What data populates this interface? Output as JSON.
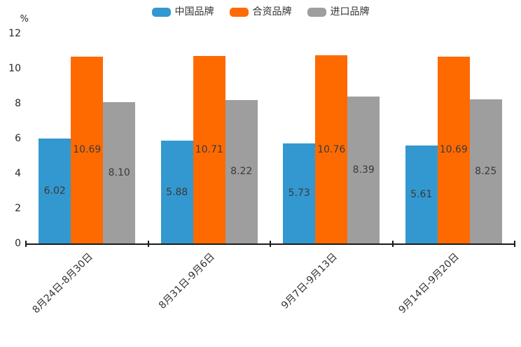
{
  "chart_data": {
    "type": "bar",
    "title": "",
    "unit_label": "%",
    "categories": [
      "8月24日-8月30日",
      "8月31日-9月6日",
      "9月7日-9月13日",
      "9月14日-9月20日"
    ],
    "series": [
      {
        "name": "中国品牌",
        "color": "#3398cf",
        "values": [
          6.02,
          5.88,
          5.73,
          5.61
        ]
      },
      {
        "name": "合资品牌",
        "color": "#ff6a00",
        "values": [
          10.69,
          10.71,
          10.76,
          10.69
        ]
      },
      {
        "name": "进口品牌",
        "color": "#9e9e9e",
        "values": [
          8.1,
          8.22,
          8.39,
          8.25
        ]
      }
    ],
    "ylim": [
      0,
      12
    ],
    "yticks": [
      0,
      2,
      4,
      6,
      8,
      10,
      12
    ],
    "grid": false,
    "legend_position": "top",
    "value_labels": "inside-center",
    "value_label_decimals": 2,
    "axis_color": "#1a1a1a",
    "text_color": "#333333"
  }
}
